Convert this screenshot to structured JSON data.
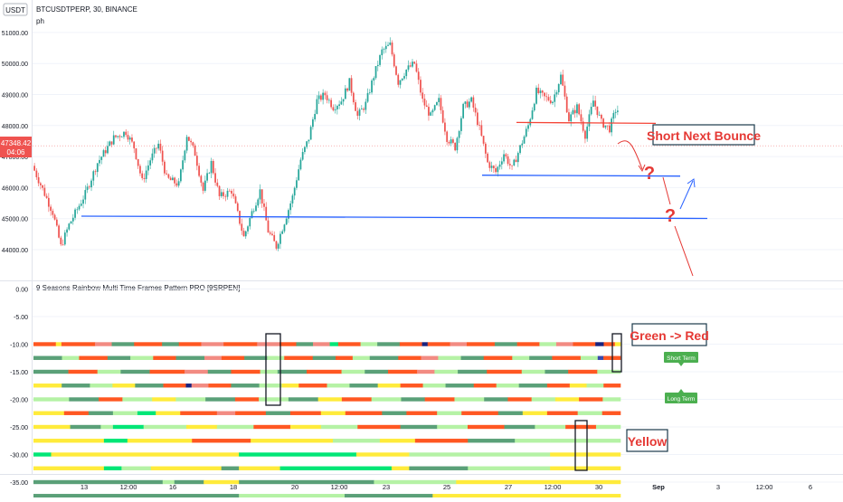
{
  "header": {
    "currency": "USDT",
    "symbol": "BTCUSDTPERP, 30, BINANCE",
    "author": "ph"
  },
  "indicator": {
    "title": "9 Seasons Rainbow Multi Time Frames Pattern PRO [9SRPEN]"
  },
  "annotations": {
    "short_bounce": "Short Next Bounce",
    "green_red": "Green -> Red",
    "yellow": "Yellow",
    "short_term": "Short Term",
    "long_term": "Long Term",
    "question": "?"
  },
  "price_axis": {
    "ticks": [
      "51000.00",
      "50000.00",
      "49000.00",
      "48000.00",
      "47000.00",
      "46000.00",
      "45000.00",
      "44000.00"
    ],
    "tick_values": [
      51000,
      50000,
      49000,
      48000,
      47000,
      46000,
      45000,
      44000
    ],
    "current_price": "47348.42",
    "countdown": "04:06"
  },
  "osc_axis": {
    "ticks": [
      "0.00",
      "-5.00",
      "-10.00",
      "-15.00",
      "-20.00",
      "-25.00",
      "-30.00",
      "-35.00"
    ],
    "tick_values": [
      0,
      -5,
      -10,
      -15,
      -20,
      -25,
      -30,
      -35
    ]
  },
  "time_axis": {
    "labels": [
      "13",
      "12:00",
      "16",
      "18",
      "20",
      "12:00",
      "23",
      "25",
      "27",
      "12:00",
      "30",
      "Sep",
      "3",
      "12:00",
      "6"
    ],
    "highlight": "Sep"
  },
  "chart_data": {
    "type": "candlestick",
    "title": "BTCUSDTPERP, 30, BINANCE",
    "price_range": [
      43600,
      51200
    ],
    "anchors": [
      [
        0,
        46700
      ],
      [
        6,
        45800
      ],
      [
        10,
        45200
      ],
      [
        14,
        44100
      ],
      [
        18,
        44800
      ],
      [
        26,
        45800
      ],
      [
        32,
        46800
      ],
      [
        40,
        47600
      ],
      [
        46,
        47800
      ],
      [
        50,
        47300
      ],
      [
        54,
        46200
      ],
      [
        58,
        46900
      ],
      [
        62,
        47400
      ],
      [
        66,
        46300
      ],
      [
        72,
        46100
      ],
      [
        76,
        47700
      ],
      [
        80,
        47100
      ],
      [
        84,
        45900
      ],
      [
        88,
        46800
      ],
      [
        92,
        45700
      ],
      [
        98,
        45900
      ],
      [
        104,
        44400
      ],
      [
        108,
        45200
      ],
      [
        112,
        45900
      ],
      [
        116,
        44600
      ],
      [
        120,
        44100
      ],
      [
        124,
        44900
      ],
      [
        128,
        45700
      ],
      [
        132,
        46900
      ],
      [
        136,
        47600
      ],
      [
        140,
        48800
      ],
      [
        144,
        49000
      ],
      [
        148,
        48600
      ],
      [
        152,
        48800
      ],
      [
        156,
        49400
      ],
      [
        160,
        48300
      ],
      [
        164,
        48700
      ],
      [
        168,
        49600
      ],
      [
        172,
        50400
      ],
      [
        176,
        50600
      ],
      [
        180,
        49400
      ],
      [
        184,
        49800
      ],
      [
        188,
        50000
      ],
      [
        192,
        48800
      ],
      [
        196,
        48300
      ],
      [
        200,
        48800
      ],
      [
        204,
        47600
      ],
      [
        208,
        47300
      ],
      [
        212,
        48600
      ],
      [
        216,
        48800
      ],
      [
        220,
        47900
      ],
      [
        224,
        46800
      ],
      [
        228,
        46500
      ],
      [
        232,
        47100
      ],
      [
        236,
        46600
      ],
      [
        240,
        47300
      ],
      [
        244,
        48000
      ],
      [
        248,
        49100
      ],
      [
        252,
        48900
      ],
      [
        256,
        48800
      ],
      [
        260,
        49600
      ],
      [
        264,
        48200
      ],
      [
        268,
        48600
      ],
      [
        272,
        47700
      ],
      [
        276,
        48800
      ],
      [
        280,
        48100
      ],
      [
        284,
        47900
      ],
      [
        287,
        48500
      ]
    ],
    "levels": {
      "red_resistance": 48100,
      "blue_support_1": 46400,
      "blue_support_2": 45050
    }
  },
  "colors": {
    "up": "#26a69a",
    "down": "#ef5350",
    "blue_line": "#2962ff",
    "red_line": "#f44336",
    "annotation_red": "#e53935",
    "label_green": "#4caf50",
    "rows": {
      "dgreen": "#5aa078",
      "lgreen": "#b5f2a5",
      "bgreen": "#00e676",
      "red": "#ff5722",
      "salmon": "#f28b82",
      "yellow": "#ffeb3b",
      "navy": "#1a237e",
      "pink": "#ef9a9a",
      "blue": "#3949ab"
    }
  },
  "oscillator_rows": [
    {
      "level": -10,
      "segments": [
        [
          "red",
          0.04
        ],
        [
          "yellow",
          0.01
        ],
        [
          "red",
          0.06
        ],
        [
          "salmon",
          0.03
        ],
        [
          "dgreen",
          0.04
        ],
        [
          "red",
          0.05
        ],
        [
          "dgreen",
          0.03
        ],
        [
          "red",
          0.04
        ],
        [
          "salmon",
          0.04
        ],
        [
          "red",
          0.06
        ],
        [
          "salmon",
          0.04
        ],
        [
          "red",
          0.03
        ],
        [
          "dgreen",
          0.03
        ],
        [
          "salmon",
          0.03
        ],
        [
          "bgreen",
          0.015
        ],
        [
          "red",
          0.04
        ],
        [
          "lgreen",
          0.03
        ],
        [
          "dgreen",
          0.04
        ],
        [
          "red",
          0.04
        ],
        [
          "navy",
          0.01
        ],
        [
          "red",
          0.04
        ],
        [
          "salmon",
          0.03
        ],
        [
          "red",
          0.05
        ],
        [
          "dgreen",
          0.04
        ],
        [
          "red",
          0.04
        ],
        [
          "lgreen",
          0.03
        ],
        [
          "salmon",
          0.03
        ],
        [
          "red",
          0.04
        ],
        [
          "navy",
          0.015
        ],
        [
          "red",
          0.02
        ],
        [
          "yellow",
          0.01
        ]
      ]
    },
    {
      "level": -12.5,
      "segments": [
        [
          "dgreen",
          0.05
        ],
        [
          "lgreen",
          0.03
        ],
        [
          "red",
          0.05
        ],
        [
          "dgreen",
          0.04
        ],
        [
          "lgreen",
          0.04
        ],
        [
          "red",
          0.04
        ],
        [
          "dgreen",
          0.05
        ],
        [
          "salmon",
          0.03
        ],
        [
          "red",
          0.04
        ],
        [
          "dgreen",
          0.04
        ],
        [
          "lgreen",
          0.03
        ],
        [
          "red",
          0.05
        ],
        [
          "dgreen",
          0.04
        ],
        [
          "red",
          0.03
        ],
        [
          "lgreen",
          0.03
        ],
        [
          "dgreen",
          0.05
        ],
        [
          "red",
          0.04
        ],
        [
          "salmon",
          0.03
        ],
        [
          "lgreen",
          0.04
        ],
        [
          "dgreen",
          0.04
        ],
        [
          "red",
          0.05
        ],
        [
          "lgreen",
          0.03
        ],
        [
          "dgreen",
          0.04
        ],
        [
          "red",
          0.05
        ],
        [
          "lgreen",
          0.03
        ],
        [
          "blue",
          0.01
        ],
        [
          "red",
          0.03
        ]
      ]
    },
    {
      "level": -15,
      "segments": [
        [
          "dgreen",
          0.06
        ],
        [
          "red",
          0.05
        ],
        [
          "lgreen",
          0.04
        ],
        [
          "dgreen",
          0.05
        ],
        [
          "red",
          0.06
        ],
        [
          "salmon",
          0.04
        ],
        [
          "dgreen",
          0.04
        ],
        [
          "red",
          0.05
        ],
        [
          "lgreen",
          0.03
        ],
        [
          "dgreen",
          0.05
        ],
        [
          "red",
          0.06
        ],
        [
          "lgreen",
          0.04
        ],
        [
          "dgreen",
          0.04
        ],
        [
          "red",
          0.05
        ],
        [
          "salmon",
          0.03
        ],
        [
          "lgreen",
          0.04
        ],
        [
          "dgreen",
          0.05
        ],
        [
          "red",
          0.06
        ],
        [
          "lgreen",
          0.04
        ],
        [
          "dgreen",
          0.04
        ],
        [
          "red",
          0.05
        ],
        [
          "lgreen",
          0.04
        ]
      ]
    },
    {
      "level": -17.5,
      "segments": [
        [
          "yellow",
          0.05
        ],
        [
          "dgreen",
          0.05
        ],
        [
          "lgreen",
          0.04
        ],
        [
          "yellow",
          0.04
        ],
        [
          "dgreen",
          0.05
        ],
        [
          "red",
          0.04
        ],
        [
          "navy",
          0.01
        ],
        [
          "salmon",
          0.03
        ],
        [
          "red",
          0.04
        ],
        [
          "dgreen",
          0.05
        ],
        [
          "lgreen",
          0.04
        ],
        [
          "yellow",
          0.03
        ],
        [
          "red",
          0.05
        ],
        [
          "lgreen",
          0.04
        ],
        [
          "dgreen",
          0.05
        ],
        [
          "yellow",
          0.04
        ],
        [
          "red",
          0.04
        ],
        [
          "lgreen",
          0.04
        ],
        [
          "dgreen",
          0.05
        ],
        [
          "red",
          0.04
        ],
        [
          "lgreen",
          0.04
        ],
        [
          "dgreen",
          0.05
        ],
        [
          "red",
          0.04
        ],
        [
          "yellow",
          0.03
        ],
        [
          "lgreen",
          0.03
        ],
        [
          "red",
          0.03
        ]
      ]
    },
    {
      "level": -20,
      "segments": [
        [
          "lgreen",
          0.06
        ],
        [
          "dgreen",
          0.05
        ],
        [
          "red",
          0.04
        ],
        [
          "lgreen",
          0.05
        ],
        [
          "yellow",
          0.04
        ],
        [
          "lgreen",
          0.05
        ],
        [
          "dgreen",
          0.05
        ],
        [
          "red",
          0.04
        ],
        [
          "lgreen",
          0.05
        ],
        [
          "dgreen",
          0.05
        ],
        [
          "yellow",
          0.04
        ],
        [
          "red",
          0.05
        ],
        [
          "lgreen",
          0.05
        ],
        [
          "dgreen",
          0.04
        ],
        [
          "red",
          0.05
        ],
        [
          "lgreen",
          0.05
        ],
        [
          "dgreen",
          0.04
        ],
        [
          "red",
          0.04
        ],
        [
          "lgreen",
          0.04
        ],
        [
          "yellow",
          0.04
        ],
        [
          "red",
          0.04
        ],
        [
          "lgreen",
          0.03
        ]
      ]
    },
    {
      "level": -22.5,
      "segments": [
        [
          "yellow",
          0.05
        ],
        [
          "red",
          0.04
        ],
        [
          "dgreen",
          0.04
        ],
        [
          "lgreen",
          0.04
        ],
        [
          "bgreen",
          0.03
        ],
        [
          "yellow",
          0.04
        ],
        [
          "red",
          0.06
        ],
        [
          "salmon",
          0.03
        ],
        [
          "red",
          0.05
        ],
        [
          "dgreen",
          0.04
        ],
        [
          "red",
          0.05
        ],
        [
          "yellow",
          0.04
        ],
        [
          "red",
          0.06
        ],
        [
          "dgreen",
          0.04
        ],
        [
          "red",
          0.05
        ],
        [
          "lgreen",
          0.04
        ],
        [
          "red",
          0.06
        ],
        [
          "dgreen",
          0.04
        ],
        [
          "yellow",
          0.04
        ],
        [
          "red",
          0.05
        ],
        [
          "lgreen",
          0.04
        ],
        [
          "red",
          0.03
        ]
      ]
    },
    {
      "level": -25,
      "segments": [
        [
          "yellow",
          0.06
        ],
        [
          "dgreen",
          0.05
        ],
        [
          "lgreen",
          0.02
        ],
        [
          "bgreen",
          0.05
        ],
        [
          "lgreen",
          0.07
        ],
        [
          "yellow",
          0.05
        ],
        [
          "lgreen",
          0.06
        ],
        [
          "red",
          0.06
        ],
        [
          "yellow",
          0.05
        ],
        [
          "lgreen",
          0.06
        ],
        [
          "red",
          0.07
        ],
        [
          "dgreen",
          0.06
        ],
        [
          "lgreen",
          0.05
        ],
        [
          "red",
          0.06
        ],
        [
          "dgreen",
          0.05
        ],
        [
          "lgreen",
          0.05
        ],
        [
          "red",
          0.05
        ],
        [
          "lgreen",
          0.04
        ]
      ]
    },
    {
      "level": -27.5,
      "segments": [
        [
          "yellow",
          0.12
        ],
        [
          "bgreen",
          0.04
        ],
        [
          "yellow",
          0.11
        ],
        [
          "red",
          0.1
        ],
        [
          "yellow",
          0.14
        ],
        [
          "lgreen",
          0.08
        ],
        [
          "yellow",
          0.06
        ],
        [
          "red",
          0.09
        ],
        [
          "dgreen",
          0.08
        ],
        [
          "lgreen",
          0.06
        ],
        [
          "lgreen",
          0.12
        ]
      ]
    },
    {
      "level": -30,
      "segments": [
        [
          "bgreen",
          0.03
        ],
        [
          "yellow",
          0.32
        ],
        [
          "bgreen",
          0.2
        ],
        [
          "yellow",
          0.09
        ],
        [
          "lgreen",
          0.24
        ],
        [
          "yellow",
          0.12
        ]
      ]
    },
    {
      "level": -32.5,
      "segments": [
        [
          "yellow",
          0.12
        ],
        [
          "bgreen",
          0.03
        ],
        [
          "lgreen",
          0.05
        ],
        [
          "yellow",
          0.12
        ],
        [
          "dgreen",
          0.03
        ],
        [
          "yellow",
          0.07
        ],
        [
          "bgreen",
          0.19
        ],
        [
          "yellow",
          0.03
        ],
        [
          "dgreen",
          0.1
        ],
        [
          "lgreen",
          0.14
        ],
        [
          "yellow",
          0.12
        ]
      ]
    },
    {
      "level": -35,
      "segments": [
        [
          "dgreen",
          0.22
        ],
        [
          "lgreen",
          0.02
        ],
        [
          "dgreen",
          0.05
        ],
        [
          "yellow",
          0.06
        ],
        [
          "dgreen",
          0.23
        ],
        [
          "lgreen",
          0.14
        ],
        [
          "yellow",
          0.28
        ]
      ]
    },
    {
      "level": -37.5,
      "segments": [
        [
          "dgreen",
          0.35
        ],
        [
          "lgreen",
          0.18
        ],
        [
          "dgreen",
          0.15
        ],
        [
          "yellow",
          0.32
        ]
      ]
    }
  ]
}
